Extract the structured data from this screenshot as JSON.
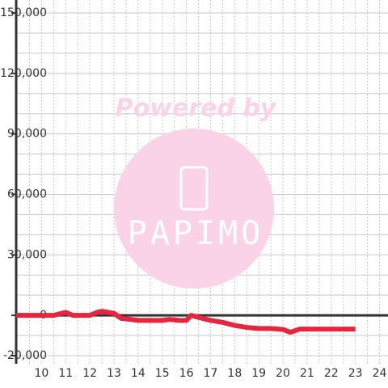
{
  "chart_data": {
    "type": "line",
    "watermark": {
      "top": "Powered by",
      "brand": "PAPIMO"
    },
    "x": [
      8.95,
      10,
      10.5,
      11,
      11.3,
      12,
      12.3,
      12.5,
      13,
      13.3,
      13.7,
      14,
      15,
      15.3,
      15.7,
      16,
      16.2,
      16.5,
      17,
      17.5,
      18,
      18.5,
      19,
      19.5,
      20,
      20.3,
      20.7,
      21,
      22,
      23
    ],
    "series": [
      {
        "color": "#e8253f",
        "values": [
          0,
          0,
          0,
          1500,
          0,
          0,
          1500,
          2000,
          1000,
          -1500,
          -2000,
          -2500,
          -2500,
          -2000,
          -2500,
          -2500,
          0,
          -1000,
          -2500,
          -3500,
          -5000,
          -6000,
          -6500,
          -6500,
          -7000,
          -8400,
          -6800,
          -6800,
          -6800,
          -6800
        ]
      }
    ],
    "xlim": [
      8.95,
      24.35
    ],
    "ylim": [
      -20000,
      150000
    ],
    "xticks": [
      10,
      11,
      12,
      13,
      14,
      15,
      16,
      17,
      18,
      19,
      20,
      21,
      22,
      23,
      24
    ],
    "yticks": [
      {
        "value": -20000,
        "label": "-20,000"
      },
      0,
      {
        "value": 30000,
        "label": "30,000"
      },
      {
        "value": 60000,
        "label": "60,000"
      },
      {
        "value": 90000,
        "label": "90,000"
      },
      {
        "value": 120000,
        "label": "120,000"
      },
      {
        "value": 150000,
        "label": "150,000"
      }
    ],
    "yminorticks": [
      -10000,
      10000,
      20000,
      40000,
      50000,
      70000,
      80000,
      100000,
      110000,
      130000,
      140000
    ],
    "xminorticks": [
      9.5,
      10.5,
      11.5,
      12.5,
      13.5,
      14.5,
      15.5,
      16.5,
      17.5,
      18.5,
      19.5,
      20.5,
      21.5,
      22.5,
      23.5
    ],
    "grid": true
  }
}
